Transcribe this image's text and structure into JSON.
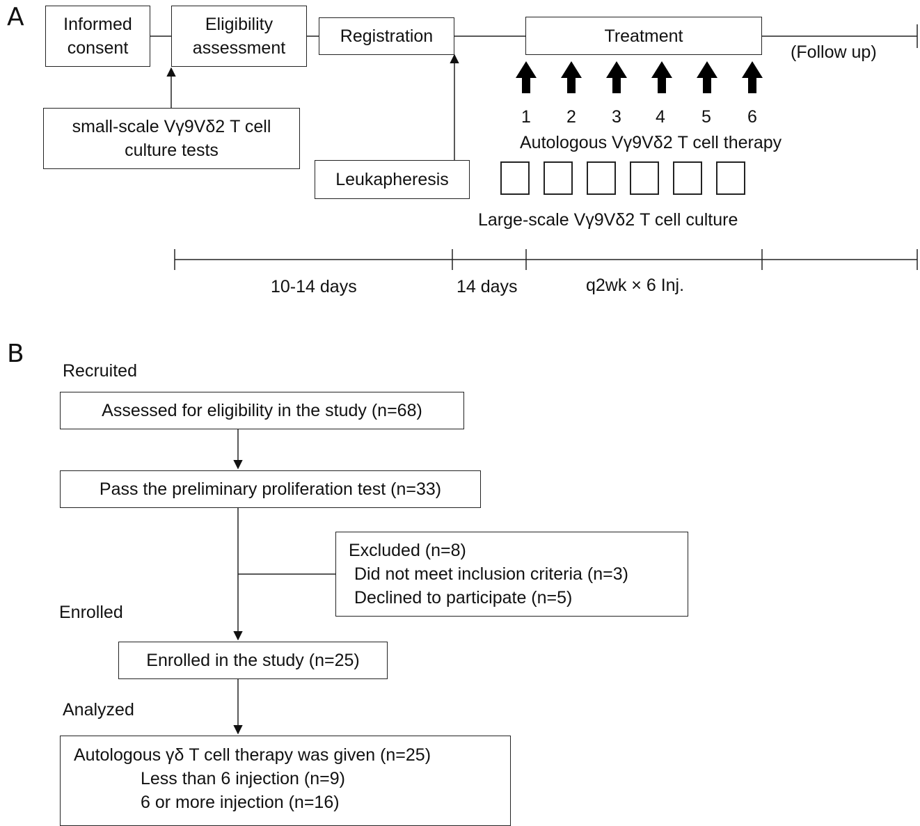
{
  "panel_a": {
    "label": "A",
    "informed_consent": [
      "Informed",
      "consent"
    ],
    "eligibility": [
      "Eligibility",
      "assessment"
    ],
    "registration": "Registration",
    "treatment": "Treatment",
    "follow_up": "(Follow up)",
    "small_scale": [
      "small-scale Vγ9Vδ2 T cell",
      "culture tests"
    ],
    "leukapheresis": "Leukapheresis",
    "injection_numbers": [
      "1",
      "2",
      "3",
      "4",
      "5",
      "6"
    ],
    "therapy_label": "Autologous Vγ9Vδ2 T cell therapy",
    "culture_label": "Large-scale Vγ9Vδ2 T cell culture",
    "timeline": {
      "period_1": "10-14 days",
      "period_2": "14 days",
      "period_3": "q2wk × 6 Inj."
    }
  },
  "panel_b": {
    "label": "B",
    "stage_recruited": "Recruited",
    "assessed": "Assessed for eligibility in the study (n=68)",
    "pass_test": "Pass the preliminary proliferation test (n=33)",
    "excluded": {
      "title": "Excluded (n=8)",
      "reason_1": "Did not meet inclusion criteria (n=3)",
      "reason_2": "Declined to participate (n=5)"
    },
    "stage_enrolled": "Enrolled",
    "enrolled": "Enrolled in the study (n=25)",
    "stage_analyzed": "Analyzed",
    "given": {
      "title": "Autologous  γδ T cell therapy was given (n=25)",
      "line_1": "Less than 6 injection (n=9)",
      "line_2": "6 or more injection (n=16)"
    }
  }
}
